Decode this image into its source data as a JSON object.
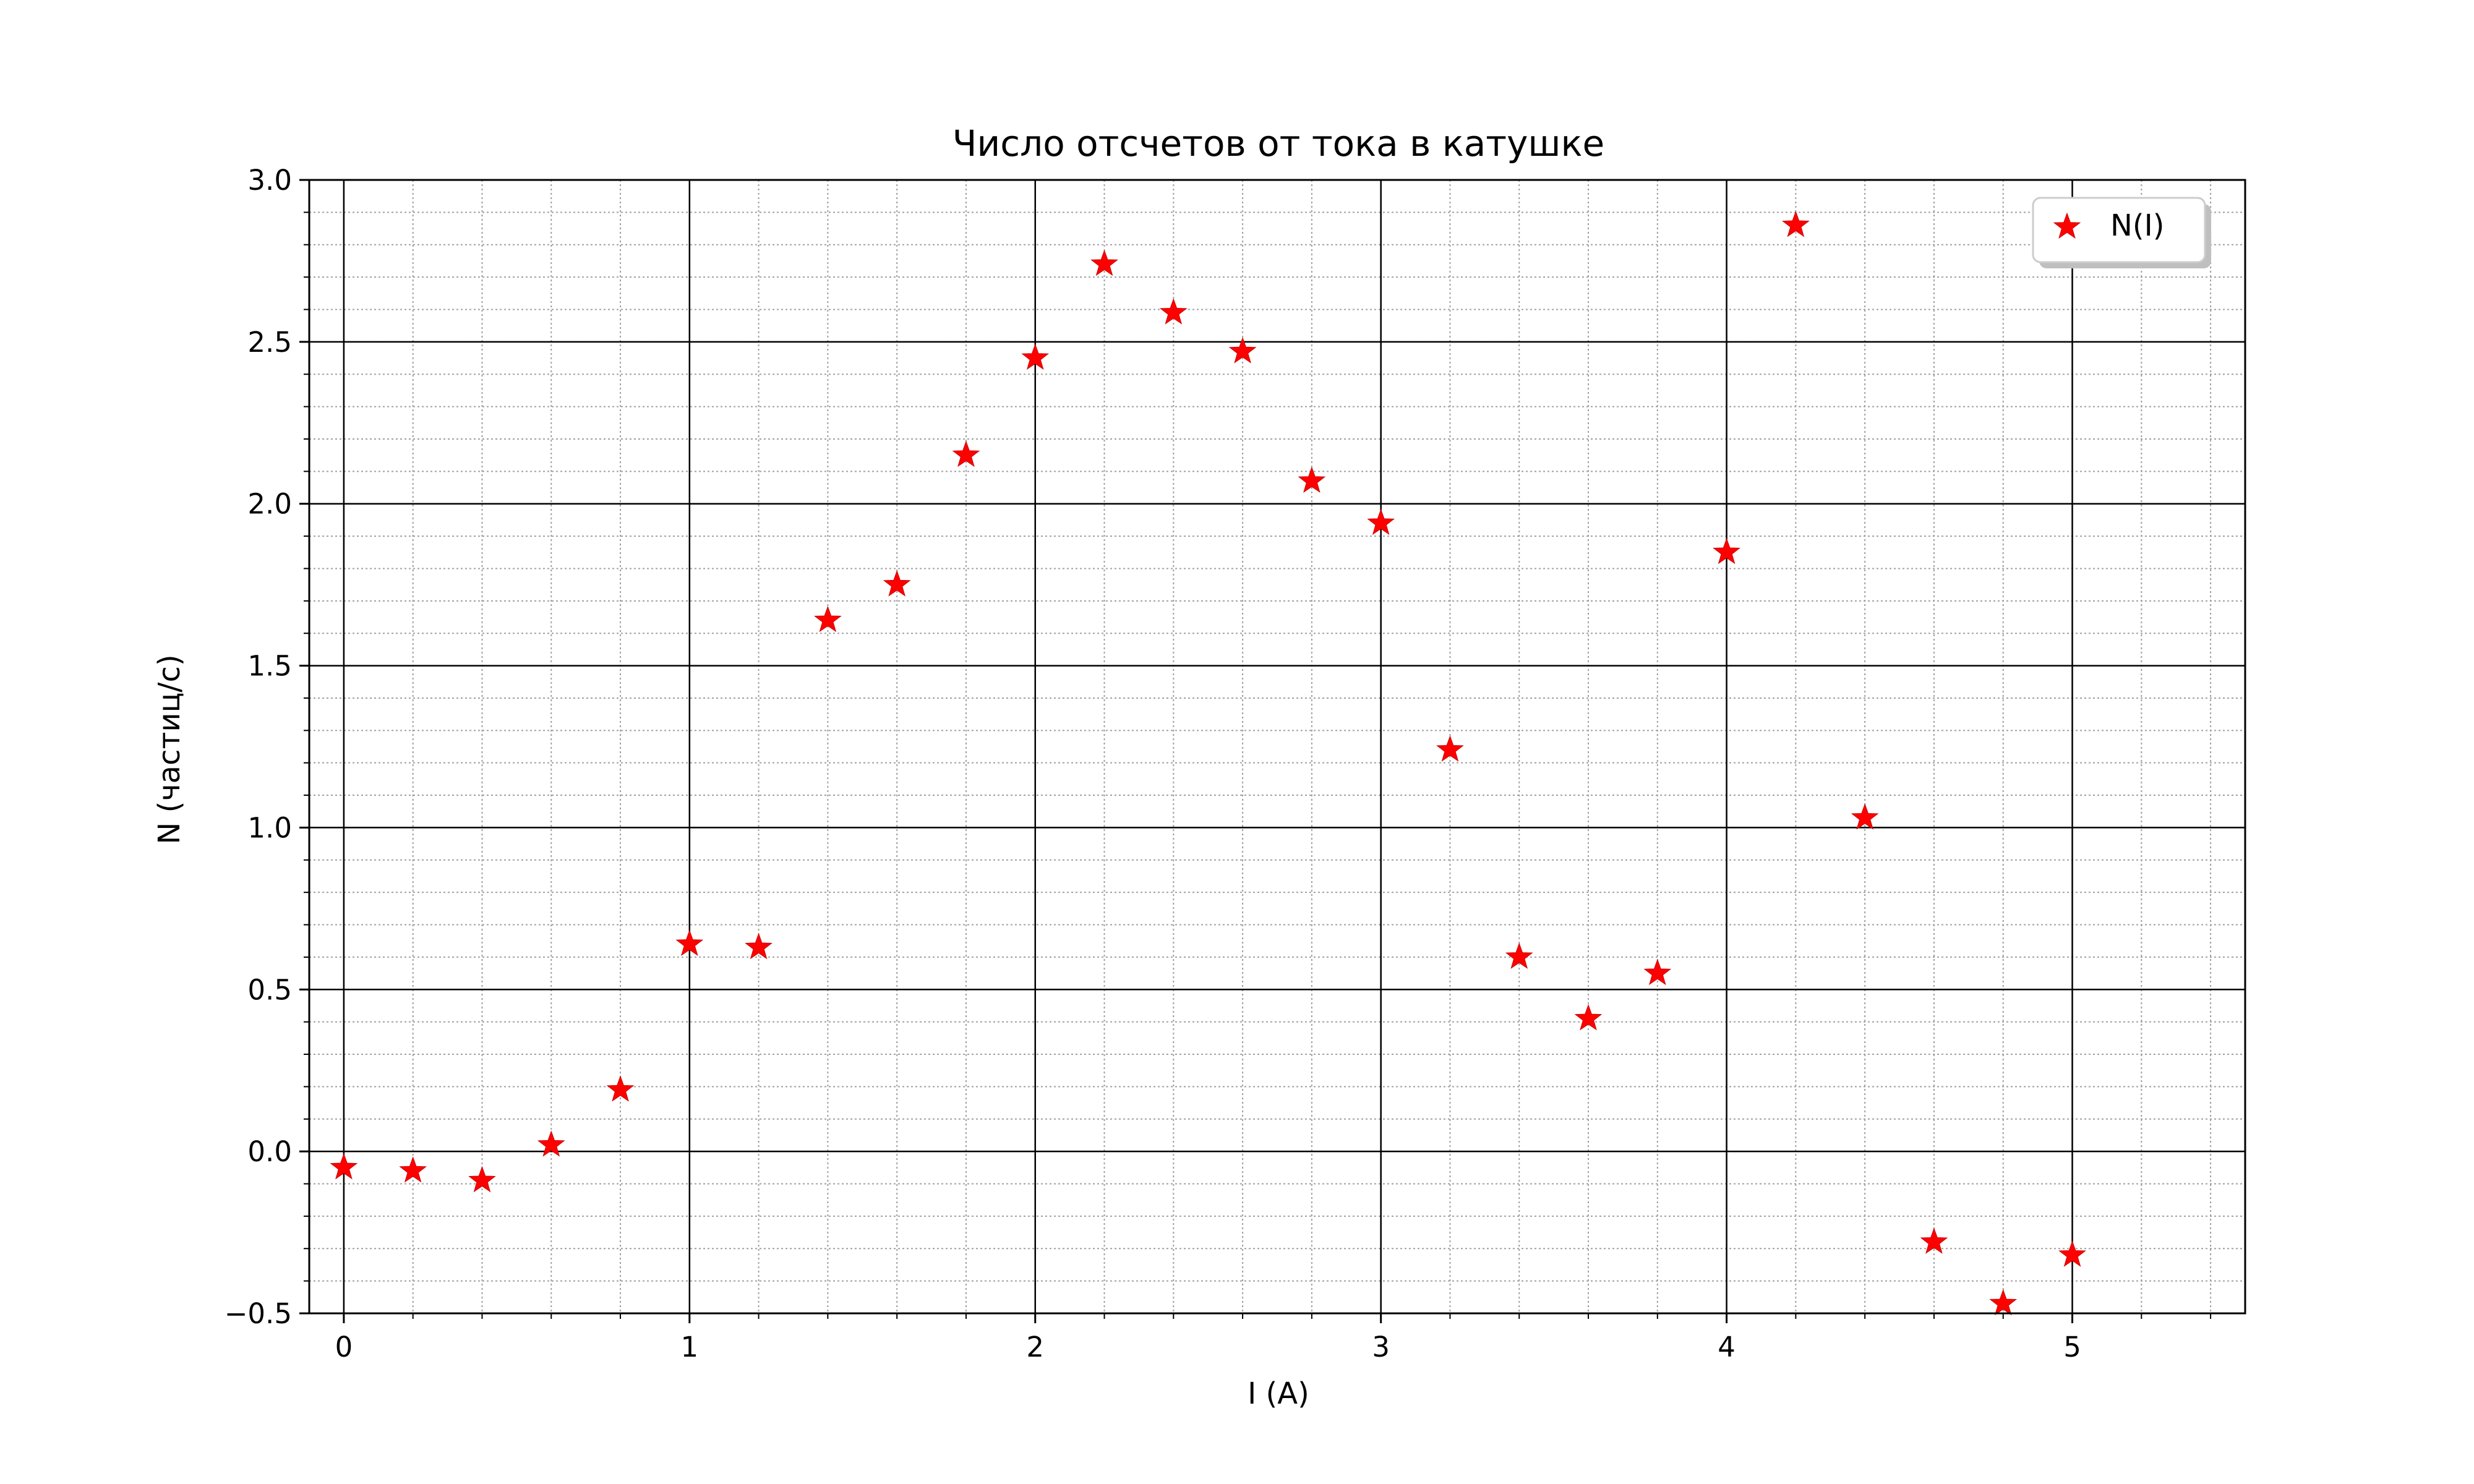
{
  "chart_data": {
    "type": "scatter",
    "title": "Число отсчетов от тока в катушке",
    "xlabel": "I (A)",
    "ylabel": "N (частиц/с)",
    "xlim": [
      -0.1,
      5.5
    ],
    "ylim": [
      -0.5,
      3.0
    ],
    "xticks": [
      0,
      1,
      2,
      3,
      4,
      5
    ],
    "xtick_labels": [
      "0",
      "1",
      "2",
      "3",
      "4",
      "5"
    ],
    "yticks": [
      -0.5,
      0.0,
      0.5,
      1.0,
      1.5,
      2.0,
      2.5,
      3.0
    ],
    "ytick_labels": [
      "−0.5",
      "0.0",
      "0.5",
      "1.0",
      "1.5",
      "2.0",
      "2.5",
      "3.0"
    ],
    "x_minor_step": 0.2,
    "y_minor_step": 0.1,
    "grid": true,
    "legend_position": "top-right",
    "series": [
      {
        "name": "N(I)",
        "marker": "star",
        "color": "#ff0000",
        "x": [
          0.0,
          0.2,
          0.4,
          0.6,
          0.8,
          1.0,
          1.2,
          1.4,
          1.6,
          1.8,
          2.0,
          2.2,
          2.4,
          2.6,
          2.8,
          3.0,
          3.2,
          3.4,
          3.6,
          3.8,
          4.0,
          4.2,
          4.4,
          4.6,
          4.8,
          5.0
        ],
        "y": [
          -0.05,
          -0.06,
          -0.09,
          0.02,
          0.19,
          0.64,
          0.63,
          1.64,
          1.75,
          2.15,
          2.45,
          2.74,
          2.59,
          2.47,
          2.07,
          1.94,
          1.24,
          0.6,
          0.41,
          0.55,
          1.85,
          2.86,
          1.03,
          -0.28,
          -0.47,
          -0.32
        ]
      }
    ]
  }
}
